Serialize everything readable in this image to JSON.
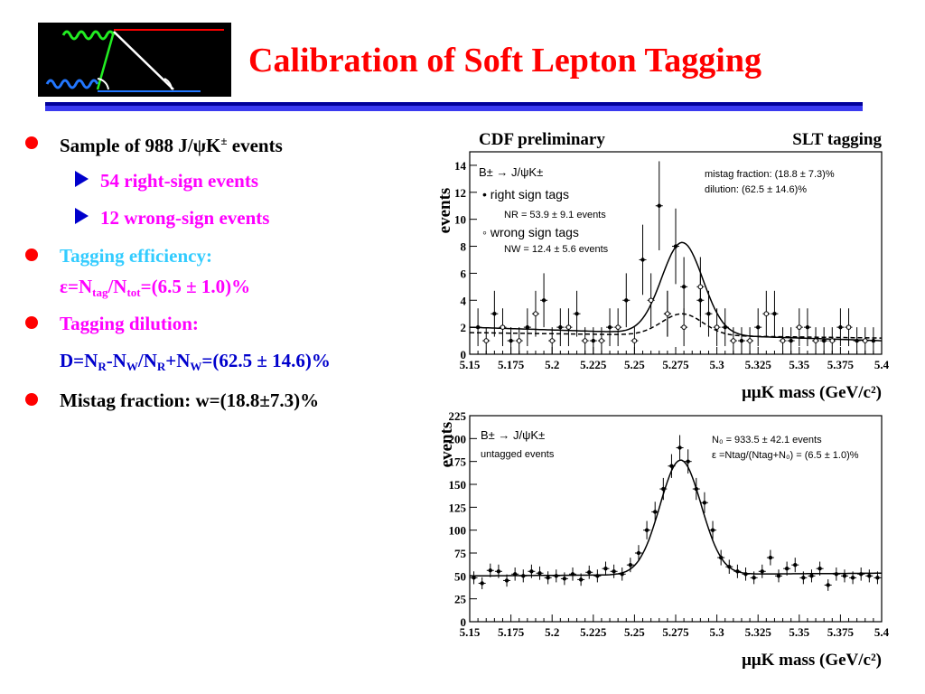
{
  "slide": {
    "title": "Calibration of Soft Lepton Tagging",
    "colors": {
      "title": "#ff0000",
      "rule": "#0000aa",
      "bullet": "#ff0000",
      "magenta": "#ff00ff",
      "cyan": "#33ccff",
      "blue": "#0000cc"
    }
  },
  "bullets": {
    "b1": {
      "pre": "Sample of 988 J/",
      "psi": "ψ",
      "k": "K",
      "pm": "±",
      "post": " events"
    },
    "b1a": "54 right-sign events",
    "b1b": "12 wrong-sign events",
    "b2_line1": "Tagging efficiency:",
    "b2_line2": {
      "eps": "ε",
      "eq": "=N",
      "tag": "tag",
      "slash": "/N",
      "tot": "tot",
      "val": "=(6.5 ± 1.0)%"
    },
    "b3_line1": "Tagging dilution:",
    "b3_line2": {
      "d": "D=N",
      "r": "R",
      "m": "-N",
      "w": "W",
      "s": "/N",
      "r2": "R",
      "p": "+N",
      "w2": "W",
      "val": "=(62.5 ± 14.6)%"
    },
    "b4": "Mistag fraction: w=(18.8±7.3)%"
  },
  "chart_data": [
    {
      "type": "scatter",
      "header_left": "CDF preliminary",
      "header_right": "SLT tagging",
      "ylabel": "events",
      "xlabel": "μμK mass (GeV/c²)",
      "xlim": [
        5.15,
        5.4
      ],
      "ylim": [
        0,
        15
      ],
      "xticks": [
        "5.15",
        "5.175",
        "5.2",
        "5.225",
        "5.25",
        "5.275",
        "5.3",
        "5.325",
        "5.35",
        "5.375",
        "5.4"
      ],
      "yticks": [
        "0",
        "2",
        "4",
        "6",
        "8",
        "10",
        "12",
        "14"
      ],
      "legend": {
        "decay": "B± → J/ψK±",
        "right": "• right sign tags",
        "nr": "NR = 53.9 ± 9.1 events",
        "wrong": "◦ wrong sign tags",
        "nw": "NW = 12.4 ± 5.6 events"
      },
      "annotations": {
        "mistag": "mistag fraction: (18.8 ± 7.3)%",
        "dilution": "dilution: (62.5 ± 14.6)%"
      },
      "series": [
        {
          "name": "right sign tags",
          "style": "filled",
          "x": [
            5.155,
            5.165,
            5.175,
            5.185,
            5.195,
            5.205,
            5.215,
            5.225,
            5.235,
            5.245,
            5.255,
            5.265,
            5.27,
            5.275,
            5.28,
            5.29,
            5.295,
            5.305,
            5.315,
            5.325,
            5.335,
            5.345,
            5.355,
            5.365,
            5.375,
            5.385,
            5.395
          ],
          "y": [
            2,
            3,
            1,
            2,
            4,
            2,
            3,
            1,
            2,
            4,
            7,
            11,
            3,
            8,
            5,
            4,
            3,
            2,
            1,
            2,
            3,
            1,
            2,
            1,
            2,
            1,
            1
          ],
          "err": [
            1.4,
            1.7,
            1,
            1.4,
            2,
            1.4,
            1.7,
            1,
            1.4,
            2,
            2.6,
            3.3,
            1.7,
            2.8,
            2.2,
            2,
            1.7,
            1.4,
            1,
            1.4,
            1.7,
            1,
            1.4,
            1,
            1.4,
            1,
            1
          ]
        },
        {
          "name": "wrong sign tags",
          "style": "open",
          "x": [
            5.16,
            5.17,
            5.18,
            5.19,
            5.2,
            5.21,
            5.22,
            5.23,
            5.24,
            5.25,
            5.26,
            5.27,
            5.28,
            5.29,
            5.3,
            5.31,
            5.32,
            5.33,
            5.34,
            5.35,
            5.36,
            5.37,
            5.38,
            5.39
          ],
          "y": [
            1,
            2,
            1,
            3,
            1,
            2,
            1,
            1,
            2,
            1,
            4,
            3,
            2,
            5,
            2,
            1,
            1,
            3,
            1,
            2,
            1,
            1,
            2,
            1
          ],
          "err": [
            1,
            1.4,
            1,
            1.7,
            1,
            1.4,
            1,
            1,
            1.4,
            1,
            2,
            1.7,
            1.4,
            2.2,
            1.4,
            1,
            1,
            1.7,
            1,
            1.4,
            1,
            1,
            1.4,
            1
          ]
        }
      ],
      "fits": [
        {
          "name": "right sign fit",
          "base_a": 2.0,
          "base_b": 1.0,
          "amp": 6.8,
          "mean": 5.279,
          "sigma": 0.0125,
          "dash": false
        },
        {
          "name": "wrong sign fit",
          "base_a": 1.6,
          "base_b": 1.2,
          "amp": 1.6,
          "mean": 5.279,
          "sigma": 0.0125,
          "dash": true
        }
      ]
    },
    {
      "type": "scatter",
      "ylabel": "events",
      "xlabel": "μμK mass (GeV/c²)",
      "xlim": [
        5.15,
        5.4
      ],
      "ylim": [
        0,
        225
      ],
      "xticks": [
        "5.15",
        "5.175",
        "5.2",
        "5.225",
        "5.25",
        "5.275",
        "5.3",
        "5.325",
        "5.35",
        "5.375",
        "5.4"
      ],
      "yticks": [
        "0",
        "25",
        "50",
        "75",
        "100",
        "125",
        "150",
        "175",
        "200",
        "225"
      ],
      "legend": {
        "decay": "B± → J/ψK±",
        "untagged": "untagged events"
      },
      "annotations": {
        "n0": "N₀ = 933.5 ± 42.1 events",
        "eps": "ε =Ntag/(Ntag+N₀) = (6.5 ± 1.0)%"
      },
      "series": [
        {
          "name": "untagged events",
          "style": "filled",
          "x": [
            5.1525,
            5.1575,
            5.1625,
            5.1675,
            5.1725,
            5.1775,
            5.1825,
            5.1875,
            5.1925,
            5.1975,
            5.2025,
            5.2075,
            5.2125,
            5.2175,
            5.2225,
            5.2275,
            5.2325,
            5.2375,
            5.2425,
            5.2475,
            5.2525,
            5.2575,
            5.2625,
            5.2675,
            5.2725,
            5.2775,
            5.2825,
            5.2875,
            5.2925,
            5.2975,
            5.3025,
            5.3075,
            5.3125,
            5.3175,
            5.3225,
            5.3275,
            5.3325,
            5.3375,
            5.3425,
            5.3475,
            5.3525,
            5.3575,
            5.3625,
            5.3675,
            5.3725,
            5.3775,
            5.3825,
            5.3875,
            5.3925,
            5.3975
          ],
          "y": [
            48,
            42,
            56,
            55,
            45,
            52,
            50,
            55,
            53,
            48,
            50,
            47,
            52,
            46,
            54,
            50,
            58,
            55,
            52,
            62,
            75,
            100,
            120,
            145,
            170,
            190,
            175,
            145,
            130,
            100,
            70,
            60,
            55,
            52,
            48,
            55,
            70,
            50,
            58,
            62,
            48,
            50,
            58,
            40,
            52,
            50,
            48,
            52,
            50,
            48
          ],
          "err": [
            7,
            6.5,
            7.5,
            7.4,
            6.7,
            7.2,
            7,
            7.4,
            7.3,
            7,
            7,
            6.9,
            7.2,
            6.8,
            7.3,
            7,
            7.6,
            7.4,
            7.2,
            7.9,
            8.7,
            10,
            11,
            12,
            13,
            13.8,
            13.2,
            12,
            11.4,
            10,
            8.4,
            7.7,
            7.4,
            7.2,
            6.9,
            7.4,
            8.4,
            7,
            7.6,
            7.9,
            6.9,
            7,
            7.6,
            6.3,
            7.2,
            7,
            6.9,
            7.2,
            7,
            6.9
          ]
        }
      ],
      "fits": [
        {
          "name": "untagged fit",
          "base_a": 50,
          "base_b": 53,
          "amp": 125,
          "mean": 5.278,
          "sigma": 0.0125,
          "dash": false
        }
      ]
    }
  ]
}
